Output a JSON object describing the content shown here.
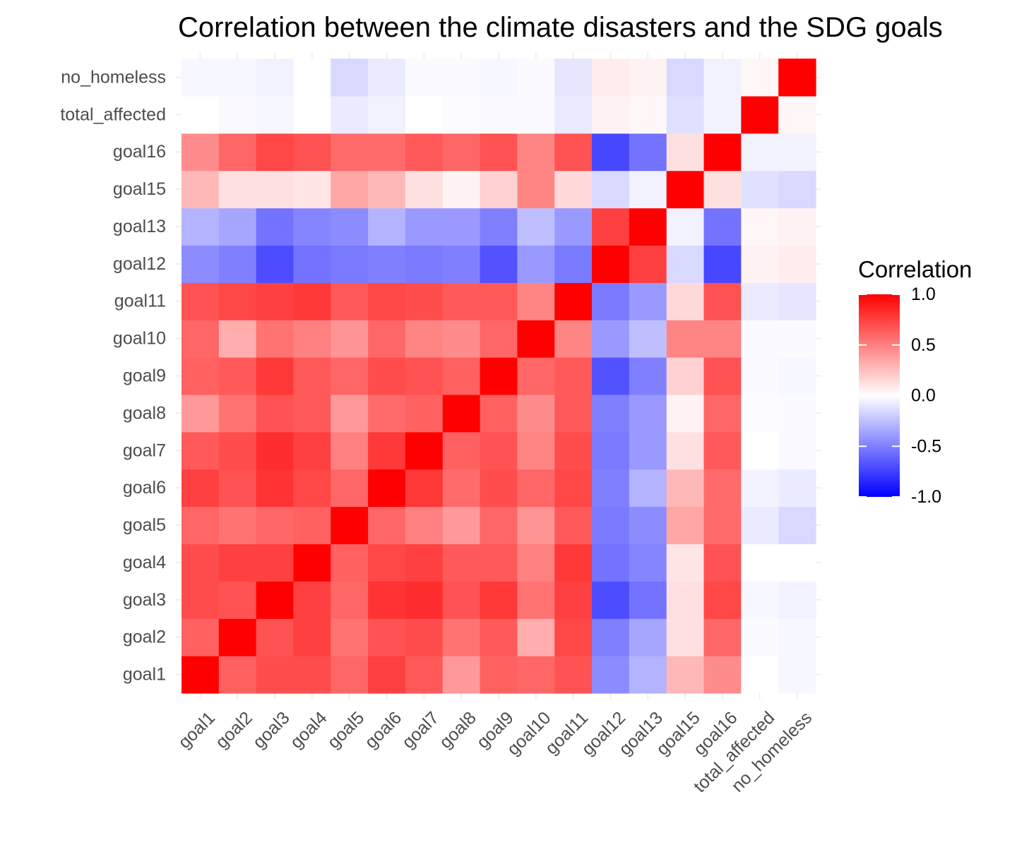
{
  "chart_data": {
    "type": "heatmap",
    "title": "Correlation between the climate disasters and the SDG goals",
    "categories": [
      "goal1",
      "goal2",
      "goal3",
      "goal4",
      "goal5",
      "goal6",
      "goal7",
      "goal8",
      "goal9",
      "goal10",
      "goal11",
      "goal12",
      "goal13",
      "goal15",
      "goal16",
      "total_affected",
      "no_homeless"
    ],
    "matrix": [
      [
        1.0,
        0.62,
        0.7,
        0.7,
        0.6,
        0.75,
        0.65,
        0.4,
        0.62,
        0.6,
        0.68,
        -0.45,
        -0.3,
        0.28,
        0.45,
        0.0,
        -0.03
      ],
      [
        0.62,
        1.0,
        0.68,
        0.75,
        0.55,
        0.68,
        0.7,
        0.55,
        0.65,
        0.32,
        0.72,
        -0.5,
        -0.35,
        0.12,
        0.6,
        -0.02,
        -0.03
      ],
      [
        0.7,
        0.68,
        1.0,
        0.75,
        0.6,
        0.8,
        0.82,
        0.68,
        0.78,
        0.55,
        0.75,
        -0.7,
        -0.55,
        0.12,
        0.72,
        -0.03,
        -0.05
      ],
      [
        0.7,
        0.75,
        0.75,
        1.0,
        0.62,
        0.72,
        0.75,
        0.65,
        0.65,
        0.5,
        0.78,
        -0.55,
        -0.48,
        0.1,
        0.68,
        0.0,
        0.0
      ],
      [
        0.6,
        0.55,
        0.6,
        0.62,
        1.0,
        0.6,
        0.5,
        0.4,
        0.6,
        0.42,
        0.65,
        -0.52,
        -0.45,
        0.35,
        0.58,
        -0.08,
        -0.15
      ],
      [
        0.75,
        0.68,
        0.8,
        0.72,
        0.6,
        1.0,
        0.78,
        0.58,
        0.7,
        0.6,
        0.72,
        -0.5,
        -0.3,
        0.28,
        0.58,
        -0.05,
        -0.08
      ],
      [
        0.65,
        0.7,
        0.82,
        0.75,
        0.5,
        0.78,
        1.0,
        0.62,
        0.68,
        0.48,
        0.7,
        -0.52,
        -0.4,
        0.12,
        0.65,
        0.0,
        -0.02
      ],
      [
        0.4,
        0.55,
        0.68,
        0.65,
        0.4,
        0.58,
        0.62,
        1.0,
        0.62,
        0.45,
        0.65,
        -0.5,
        -0.4,
        0.05,
        0.6,
        -0.01,
        -0.02
      ],
      [
        0.62,
        0.65,
        0.78,
        0.65,
        0.6,
        0.7,
        0.68,
        0.62,
        1.0,
        0.6,
        0.65,
        -0.68,
        -0.5,
        0.18,
        0.68,
        -0.02,
        -0.03
      ],
      [
        0.6,
        0.32,
        0.55,
        0.5,
        0.42,
        0.6,
        0.48,
        0.45,
        0.6,
        1.0,
        0.48,
        -0.4,
        -0.25,
        0.48,
        0.48,
        -0.02,
        -0.02
      ],
      [
        0.68,
        0.72,
        0.75,
        0.78,
        0.65,
        0.72,
        0.7,
        0.65,
        0.65,
        0.48,
        1.0,
        -0.52,
        -0.4,
        0.15,
        0.68,
        -0.08,
        -0.1
      ],
      [
        -0.45,
        -0.5,
        -0.7,
        -0.55,
        -0.52,
        -0.5,
        -0.52,
        -0.5,
        -0.68,
        -0.4,
        -0.52,
        1.0,
        0.75,
        -0.15,
        -0.72,
        0.05,
        0.07
      ],
      [
        -0.3,
        -0.35,
        -0.55,
        -0.48,
        -0.45,
        -0.3,
        -0.4,
        -0.4,
        -0.5,
        -0.25,
        -0.4,
        0.75,
        1.0,
        -0.05,
        -0.55,
        0.03,
        0.05
      ],
      [
        0.28,
        0.12,
        0.12,
        0.1,
        0.35,
        0.28,
        0.12,
        0.05,
        0.18,
        0.48,
        0.15,
        -0.15,
        -0.05,
        1.0,
        0.12,
        -0.12,
        -0.15
      ],
      [
        0.45,
        0.6,
        0.72,
        0.68,
        0.58,
        0.58,
        0.65,
        0.6,
        0.68,
        0.48,
        0.68,
        -0.72,
        -0.55,
        0.12,
        1.0,
        -0.05,
        -0.05
      ],
      [
        0.0,
        -0.02,
        -0.03,
        0.0,
        -0.08,
        -0.05,
        0.0,
        -0.01,
        -0.02,
        -0.02,
        -0.08,
        0.05,
        0.03,
        -0.12,
        -0.05,
        1.0,
        0.03
      ],
      [
        -0.03,
        -0.03,
        -0.05,
        0.0,
        -0.15,
        -0.08,
        -0.02,
        -0.02,
        -0.03,
        -0.02,
        -0.1,
        0.07,
        0.05,
        -0.15,
        -0.05,
        0.03,
        1.0
      ]
    ],
    "value_range": [
      -1.0,
      1.0
    ],
    "legend": {
      "title": "Correlation",
      "placement": "right",
      "ticks": [
        "1.0",
        "0.5",
        "0.0",
        "-0.5",
        "-1.0"
      ],
      "tick_values": [
        1.0,
        0.5,
        0.0,
        -0.5,
        -1.0
      ]
    },
    "colors": {
      "low": "#0000ff",
      "mid": "#ffffff",
      "high": "#ff0000"
    },
    "grid": true
  }
}
